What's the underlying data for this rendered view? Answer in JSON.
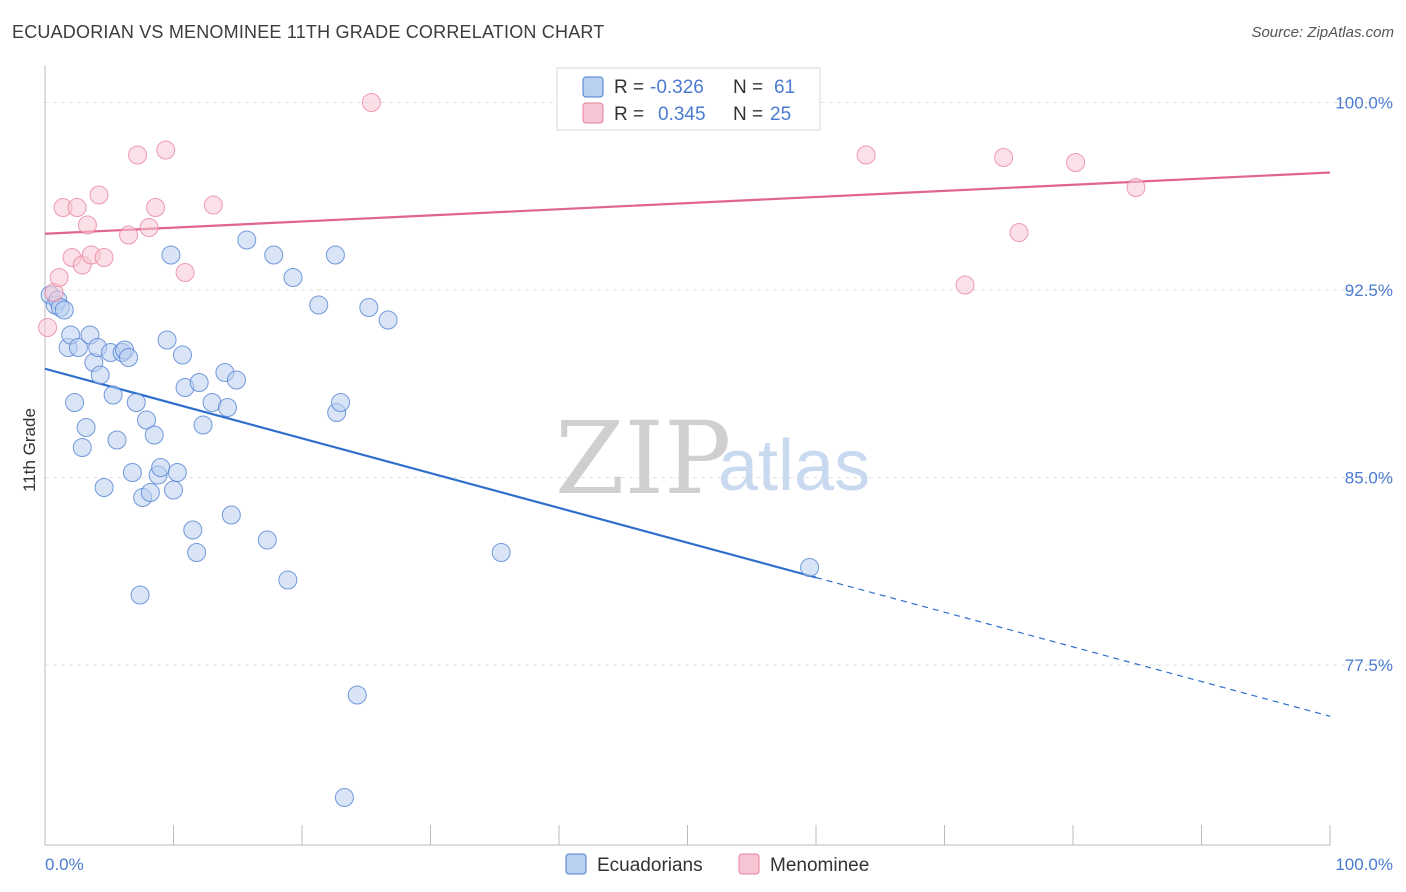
{
  "title": "ECUADORIAN VS MENOMINEE 11TH GRADE CORRELATION CHART",
  "source": "Source: ZipAtlas.com",
  "watermark": {
    "zip": "ZIP",
    "atlas": "atlas"
  },
  "colors": {
    "blue": "#4a7bd0",
    "blue_fill": "#b9d0f0",
    "blue_line": "#2f6fcc",
    "pink": "#e87d9e",
    "pink_fill": "#f7c6d4",
    "pink_line": "#e0648c",
    "grid": "#e2e2e2"
  },
  "legend": {
    "rows": [
      {
        "r_label": "R =",
        "r_value": "-0.326",
        "n_label": "N =",
        "n_value": "61"
      },
      {
        "r_label": "R =",
        "r_value": "0.345",
        "n_label": "N =",
        "n_value": "25"
      }
    ]
  },
  "chart_data": {
    "type": "scatter",
    "title": "ECUADORIAN VS MENOMINEE 11TH GRADE CORRELATION CHART",
    "xlabel": "",
    "ylabel": "11th Grade",
    "xlim": [
      0,
      100
    ],
    "ylim": [
      70.3,
      101.3
    ],
    "x_tick_labels": [
      "0.0%",
      "100.0%"
    ],
    "y_ticks": [
      77.5,
      85.0,
      92.5,
      100.0
    ],
    "y_tick_labels": [
      "77.5%",
      "85.0%",
      "92.5%",
      "100.0%"
    ],
    "grid": true,
    "series": [
      {
        "name": "Ecuadorians",
        "r": -0.326,
        "n": 61,
        "trend": {
          "x0": 0,
          "y0": 89.35,
          "x1": 60,
          "y1": 81.0,
          "dash_to_x": 100,
          "dash_to_y": 75.45
        },
        "points": [
          [
            0.4,
            92.3
          ],
          [
            0.8,
            91.9
          ],
          [
            1.0,
            92.1
          ],
          [
            1.2,
            91.8
          ],
          [
            1.5,
            91.7
          ],
          [
            1.8,
            90.2
          ],
          [
            2.0,
            90.7
          ],
          [
            2.3,
            88.0
          ],
          [
            2.6,
            90.2
          ],
          [
            2.9,
            86.2
          ],
          [
            3.2,
            87.0
          ],
          [
            3.5,
            90.7
          ],
          [
            3.8,
            89.6
          ],
          [
            4.1,
            90.2
          ],
          [
            4.3,
            89.1
          ],
          [
            4.6,
            84.6
          ],
          [
            5.1,
            90.0
          ],
          [
            5.3,
            88.3
          ],
          [
            5.6,
            86.5
          ],
          [
            6.0,
            90.0
          ],
          [
            6.2,
            90.1
          ],
          [
            6.5,
            89.8
          ],
          [
            6.8,
            85.2
          ],
          [
            7.1,
            88.0
          ],
          [
            7.4,
            80.3
          ],
          [
            7.6,
            84.2
          ],
          [
            7.9,
            87.3
          ],
          [
            8.2,
            84.4
          ],
          [
            8.5,
            86.7
          ],
          [
            8.8,
            85.1
          ],
          [
            9.0,
            85.4
          ],
          [
            9.5,
            90.5
          ],
          [
            9.8,
            93.9
          ],
          [
            10.0,
            84.5
          ],
          [
            10.3,
            85.2
          ],
          [
            10.7,
            89.9
          ],
          [
            10.9,
            88.6
          ],
          [
            11.5,
            82.9
          ],
          [
            11.8,
            82.0
          ],
          [
            12.0,
            88.8
          ],
          [
            12.3,
            87.1
          ],
          [
            13.0,
            88.0
          ],
          [
            14.0,
            89.2
          ],
          [
            14.2,
            87.8
          ],
          [
            14.5,
            83.5
          ],
          [
            14.9,
            88.9
          ],
          [
            15.7,
            94.5
          ],
          [
            17.3,
            82.5
          ],
          [
            17.8,
            93.9
          ],
          [
            18.9,
            80.9
          ],
          [
            19.3,
            93.0
          ],
          [
            21.3,
            91.9
          ],
          [
            22.6,
            93.9
          ],
          [
            22.7,
            87.6
          ],
          [
            23.0,
            88.0
          ],
          [
            23.3,
            72.2
          ],
          [
            24.3,
            76.3
          ],
          [
            25.2,
            91.8
          ],
          [
            26.7,
            91.3
          ],
          [
            35.5,
            82.0
          ],
          [
            59.5,
            81.4
          ]
        ]
      },
      {
        "name": "Menominee",
        "r": 0.345,
        "n": 25,
        "trend": {
          "x0": 0,
          "y0": 94.75,
          "x1": 100,
          "y1": 97.2
        },
        "points": [
          [
            0.2,
            91.0
          ],
          [
            0.7,
            92.4
          ],
          [
            1.1,
            93.0
          ],
          [
            1.4,
            95.8
          ],
          [
            2.1,
            93.8
          ],
          [
            2.5,
            95.8
          ],
          [
            2.9,
            93.5
          ],
          [
            3.3,
            95.1
          ],
          [
            3.6,
            93.9
          ],
          [
            4.2,
            96.3
          ],
          [
            4.6,
            93.8
          ],
          [
            6.5,
            94.7
          ],
          [
            7.2,
            97.9
          ],
          [
            8.1,
            95.0
          ],
          [
            8.6,
            95.8
          ],
          [
            9.4,
            98.1
          ],
          [
            10.9,
            93.2
          ],
          [
            13.1,
            95.9
          ],
          [
            25.4,
            100.0
          ],
          [
            63.9,
            97.9
          ],
          [
            71.6,
            92.7
          ],
          [
            74.6,
            97.8
          ],
          [
            75.8,
            94.8
          ],
          [
            80.2,
            97.6
          ],
          [
            84.9,
            96.6
          ]
        ]
      }
    ]
  },
  "bottom_legend": [
    {
      "label": "Ecuadorians"
    },
    {
      "label": "Menominee"
    }
  ]
}
